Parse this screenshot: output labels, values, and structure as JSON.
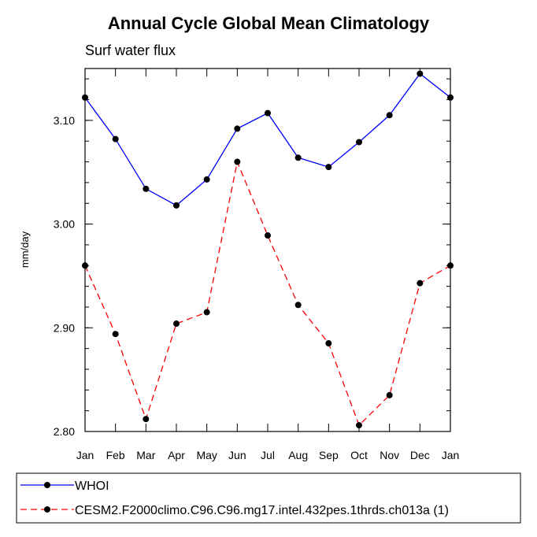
{
  "chart_data": {
    "type": "line",
    "title": "Annual Cycle Global Mean Climatology",
    "subtitle": "Surf water flux",
    "xlabel": "",
    "ylabel": "mm/day",
    "categories": [
      "Jan",
      "Feb",
      "Mar",
      "Apr",
      "May",
      "Jun",
      "Jul",
      "Aug",
      "Sep",
      "Oct",
      "Nov",
      "Dec",
      "Jan"
    ],
    "ylim": [
      2.8,
      3.15
    ],
    "yticks": [
      2.8,
      2.9,
      3.0,
      3.1
    ],
    "ytick_labels": [
      "2.80",
      "2.90",
      "3.00",
      "3.10"
    ],
    "series": [
      {
        "name": "WHOI",
        "color": "#0000ff",
        "dash": "solid",
        "values": [
          3.122,
          3.082,
          3.034,
          3.018,
          3.043,
          3.092,
          3.107,
          3.064,
          3.055,
          3.079,
          3.105,
          3.145,
          3.122
        ]
      },
      {
        "name": "CESM2.F2000climo.C96.C96.mg17.intel.432pes.1thrds.ch013a (1)",
        "color": "#ff0000",
        "dash": "dashed",
        "values": [
          2.96,
          2.894,
          2.812,
          2.904,
          2.915,
          3.06,
          2.989,
          2.922,
          2.885,
          2.806,
          2.835,
          2.943,
          2.96
        ]
      }
    ],
    "legend_position": "bottom"
  }
}
